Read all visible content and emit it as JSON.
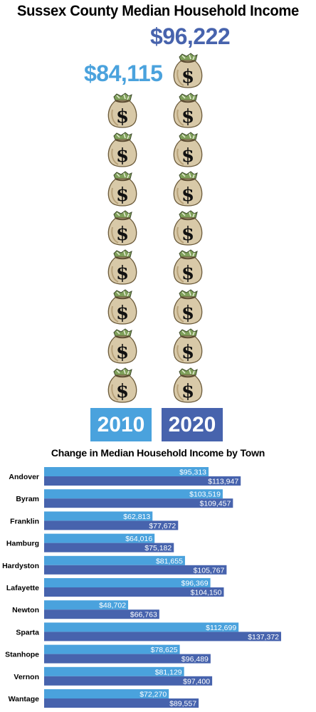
{
  "title": "Sussex County Median Household Income",
  "colors": {
    "light": "#4aa2dd",
    "dark": "#4763ad"
  },
  "pictograph": {
    "icon": "money-bag-icon",
    "columns": [
      {
        "year": "2010",
        "value_label": "$84,115",
        "bags": 8
      },
      {
        "year": "2020",
        "value_label": "$96,222",
        "bags": 9
      }
    ]
  },
  "chart_data": {
    "type": "bar",
    "title": "Change in Median Household Income by Town",
    "orientation": "horizontal",
    "categories": [
      "Andover",
      "Byram",
      "Franklin",
      "Hamburg",
      "Hardyston",
      "Lafayette",
      "Newton",
      "Sparta",
      "Stanhope",
      "Vernon",
      "Wantage"
    ],
    "series": [
      {
        "name": "2010",
        "color": "#4aa2dd",
        "values": [
          95313,
          103519,
          62813,
          64016,
          81655,
          96369,
          48702,
          112699,
          78625,
          81129,
          72270
        ],
        "labels": [
          "$95,313",
          "$103,519",
          "$62,813",
          "$64,016",
          "$81,655",
          "$96,369",
          "$48,702",
          "$112,699",
          "$78,625",
          "$81,129",
          "$72,270"
        ]
      },
      {
        "name": "2020",
        "color": "#4763ad",
        "values": [
          113947,
          109457,
          77672,
          75182,
          105767,
          104150,
          66763,
          137372,
          96489,
          97400,
          89557
        ],
        "labels": [
          "$113,947",
          "$109,457",
          "$77,672",
          "$75,182",
          "$105,767",
          "$104,150",
          "$66,763",
          "$137,372",
          "$96,489",
          "$97,400",
          "$89,557"
        ]
      }
    ]
  }
}
